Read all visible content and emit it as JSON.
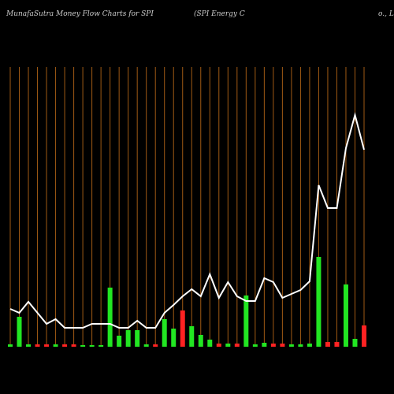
{
  "chart_data": {
    "type": "money-flow",
    "title": "MunafaSutra  Money Flow  Charts for SPI",
    "company_label_parts": [
      "(SPI Energy C",
      "o., L"
    ],
    "categories": [
      null,
      null,
      null,
      null,
      null,
      null,
      null,
      null,
      null,
      null,
      null,
      null,
      null,
      null,
      null,
      null,
      null,
      null,
      null,
      null,
      null,
      null,
      null,
      null,
      null,
      null,
      null,
      null,
      null,
      null,
      null,
      null,
      null,
      null,
      null,
      null,
      null,
      null,
      null,
      null
    ],
    "ylim": [
      0,
      300
    ],
    "grid_color": "#a05a14",
    "bars": {
      "values": [
        3,
        38,
        3,
        3,
        3,
        3,
        3,
        3,
        2,
        2,
        2,
        75,
        14,
        21,
        21,
        3,
        3,
        35,
        23,
        46,
        26,
        15,
        9,
        4,
        4,
        4,
        65,
        3,
        5,
        4,
        4,
        3,
        3,
        4,
        114,
        6,
        6,
        79,
        10,
        27
      ],
      "colors": [
        "#22e622",
        "#22e622",
        "#22e622",
        "#ff2222",
        "#ff2222",
        "#22e622",
        "#ff2222",
        "#ff2222",
        "#22e622",
        "#22e622",
        "#22e622",
        "#22e622",
        "#22e622",
        "#22e622",
        "#22e622",
        "#22e622",
        "#ff2222",
        "#22e622",
        "#22e622",
        "#ff2222",
        "#22e622",
        "#22e622",
        "#22e622",
        "#ff2222",
        "#22e622",
        "#ff2222",
        "#22e622",
        "#22e622",
        "#22e622",
        "#ff2222",
        "#ff2222",
        "#22e622",
        "#22e622",
        "#22e622",
        "#22e622",
        "#ff2222",
        "#ff2222",
        "#22e622",
        "#22e622",
        "#ff2222"
      ]
    },
    "line": {
      "color": "#ffffff",
      "values": [
        48,
        43,
        57,
        43,
        29,
        35,
        24,
        24,
        24,
        29,
        29,
        29,
        24,
        24,
        33,
        24,
        24,
        43,
        53,
        64,
        73,
        64,
        92,
        62,
        82,
        64,
        58,
        58,
        87,
        82,
        62,
        67,
        72,
        83,
        205,
        176,
        176,
        252,
        294,
        250
      ]
    }
  }
}
